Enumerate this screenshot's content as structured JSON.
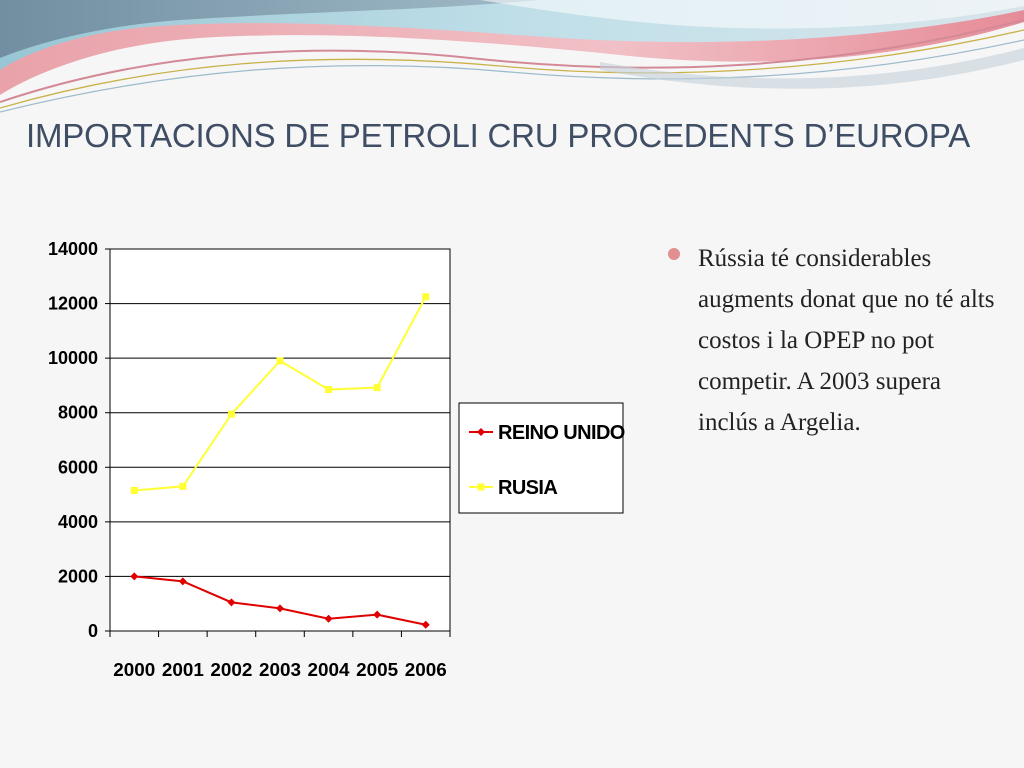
{
  "slide": {
    "title": "IMPORTACIONS DE PETROLI CRU PROCEDENTS D’EUROPA",
    "bullet": "Rússia té considerables augments donat que no té alts costos i la OPEP no pot competir. A 2003 supera inclús a Argelia.",
    "accent_colors": [
      "#e18f8f",
      "#7ec8d8",
      "#3f4e65"
    ]
  },
  "chart_data": {
    "type": "line",
    "title": "",
    "xlabel": "",
    "ylabel": "",
    "categories": [
      "2000",
      "2001",
      "2002",
      "2003",
      "2004",
      "2005",
      "2006"
    ],
    "ylim": [
      0,
      14000
    ],
    "yticks": [
      0,
      2000,
      4000,
      6000,
      8000,
      10000,
      12000,
      14000
    ],
    "grid": "horizontal",
    "legend_position": "right",
    "series": [
      {
        "name": "REINO UNIDO",
        "color": "#e00000",
        "marker": "diamond",
        "values": [
          2000,
          1820,
          1050,
          830,
          450,
          600,
          230
        ]
      },
      {
        "name": "RUSIA",
        "color": "#ffff33",
        "marker": "square",
        "values": [
          5150,
          5300,
          7950,
          9900,
          8850,
          8920,
          12250
        ]
      }
    ]
  }
}
